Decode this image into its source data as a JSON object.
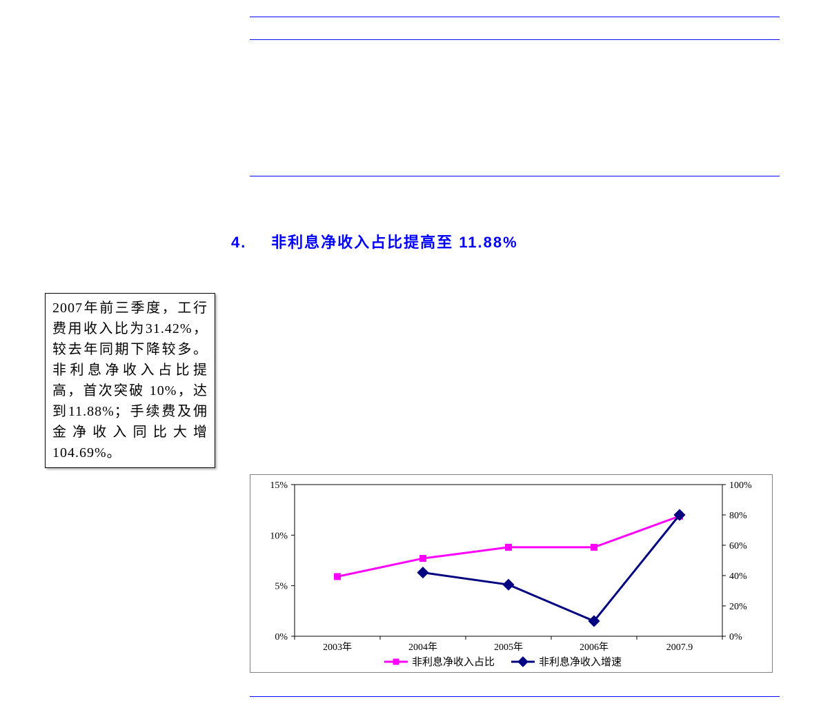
{
  "section": {
    "number": "4.",
    "title": "非利息净收入占比提高至 11.88%"
  },
  "sidebar_note": "2007年前三季度，工行费用收入比为31.42%，较去年同期下降较多。非利息净收入占比提高，首次突破 10%，达到11.88%；手续费及佣金净收入同比大增 104.69%。",
  "chart": {
    "type": "line-dual-axis",
    "categories": [
      "2003年",
      "2004年",
      "2005年",
      "2006年",
      "2007.9"
    ],
    "series": [
      {
        "name": "非利息净收入占比",
        "axis": "left",
        "values": [
          5.9,
          7.7,
          8.8,
          8.8,
          11.88
        ],
        "has_data_at_first": true,
        "color": "#ff00ff",
        "marker": "square",
        "marker_size": 9,
        "line_width": 3
      },
      {
        "name": "非利息净收入增速",
        "axis": "right",
        "values": [
          null,
          42,
          34,
          10,
          80
        ],
        "has_data_at_first": false,
        "color": "#000080",
        "marker": "diamond",
        "marker_size": 11,
        "line_width": 3
      }
    ],
    "left_axis": {
      "min": 0,
      "max": 15,
      "step": 5,
      "suffix": "%",
      "ticks": [
        "0%",
        "5%",
        "10%",
        "15%"
      ]
    },
    "right_axis": {
      "min": 0,
      "max": 100,
      "step": 20,
      "suffix": "%",
      "ticks": [
        "0%",
        "20%",
        "40%",
        "60%",
        "80%",
        "100%"
      ]
    },
    "plot_bg": "#ffffff",
    "border_color": "#808080",
    "tick_font_size": 14,
    "legend_font_size": 15,
    "axis_color": "#000000"
  }
}
